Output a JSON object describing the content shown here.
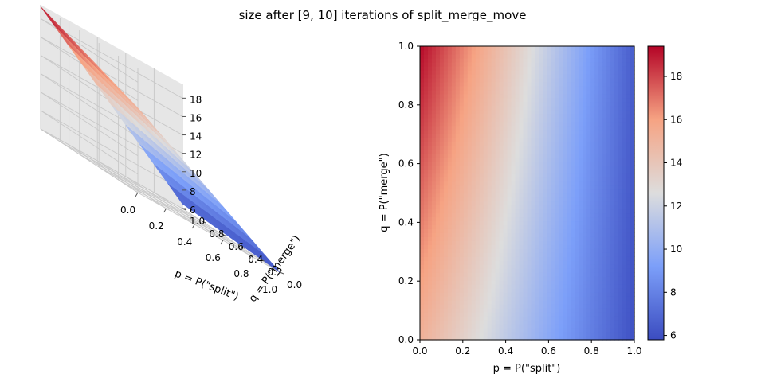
{
  "figure": {
    "title": "size after [9, 10] iterations of split_merge_move"
  },
  "chart_data": [
    {
      "type": "surface3d",
      "xlabel": "p = P(\"split\")",
      "ylabel": "q = P(\"merge\")",
      "xlim": [
        0,
        1
      ],
      "ylim": [
        0,
        1
      ],
      "zlim": [
        6,
        19.5
      ],
      "xticks": [
        "0.0",
        "0.2",
        "0.4",
        "0.6",
        "0.8",
        "1.0"
      ],
      "yticks": [
        "0.0",
        "0.2",
        "0.4",
        "0.6",
        "0.8",
        "1.0"
      ],
      "zticks": [
        "6",
        "8",
        "10",
        "12",
        "14",
        "16",
        "18"
      ],
      "grid": true,
      "colormap": "coolwarm"
    },
    {
      "type": "heatmap",
      "xlabel": "p = P(\"split\")",
      "ylabel": "q = P(\"merge\")",
      "xlim": [
        0,
        1
      ],
      "ylim": [
        0,
        1
      ],
      "xticks": [
        "0.0",
        "0.2",
        "0.4",
        "0.6",
        "0.8",
        "1.0"
      ],
      "yticks": [
        "0.0",
        "0.2",
        "0.4",
        "0.6",
        "0.8",
        "1.0"
      ],
      "colorbar_ticks": [
        "6",
        "8",
        "10",
        "12",
        "14",
        "16",
        "18"
      ],
      "colorbar_range": [
        5.8,
        19.4
      ],
      "colormap": "coolwarm",
      "description": "value decreases roughly linearly with p and increases slightly with q",
      "value_model": {
        "at_p0_q0": 15.2,
        "at_p1_q0": 6.0,
        "at_p0_q1": 19.3,
        "at_p1_q1": 6.5
      }
    }
  ]
}
